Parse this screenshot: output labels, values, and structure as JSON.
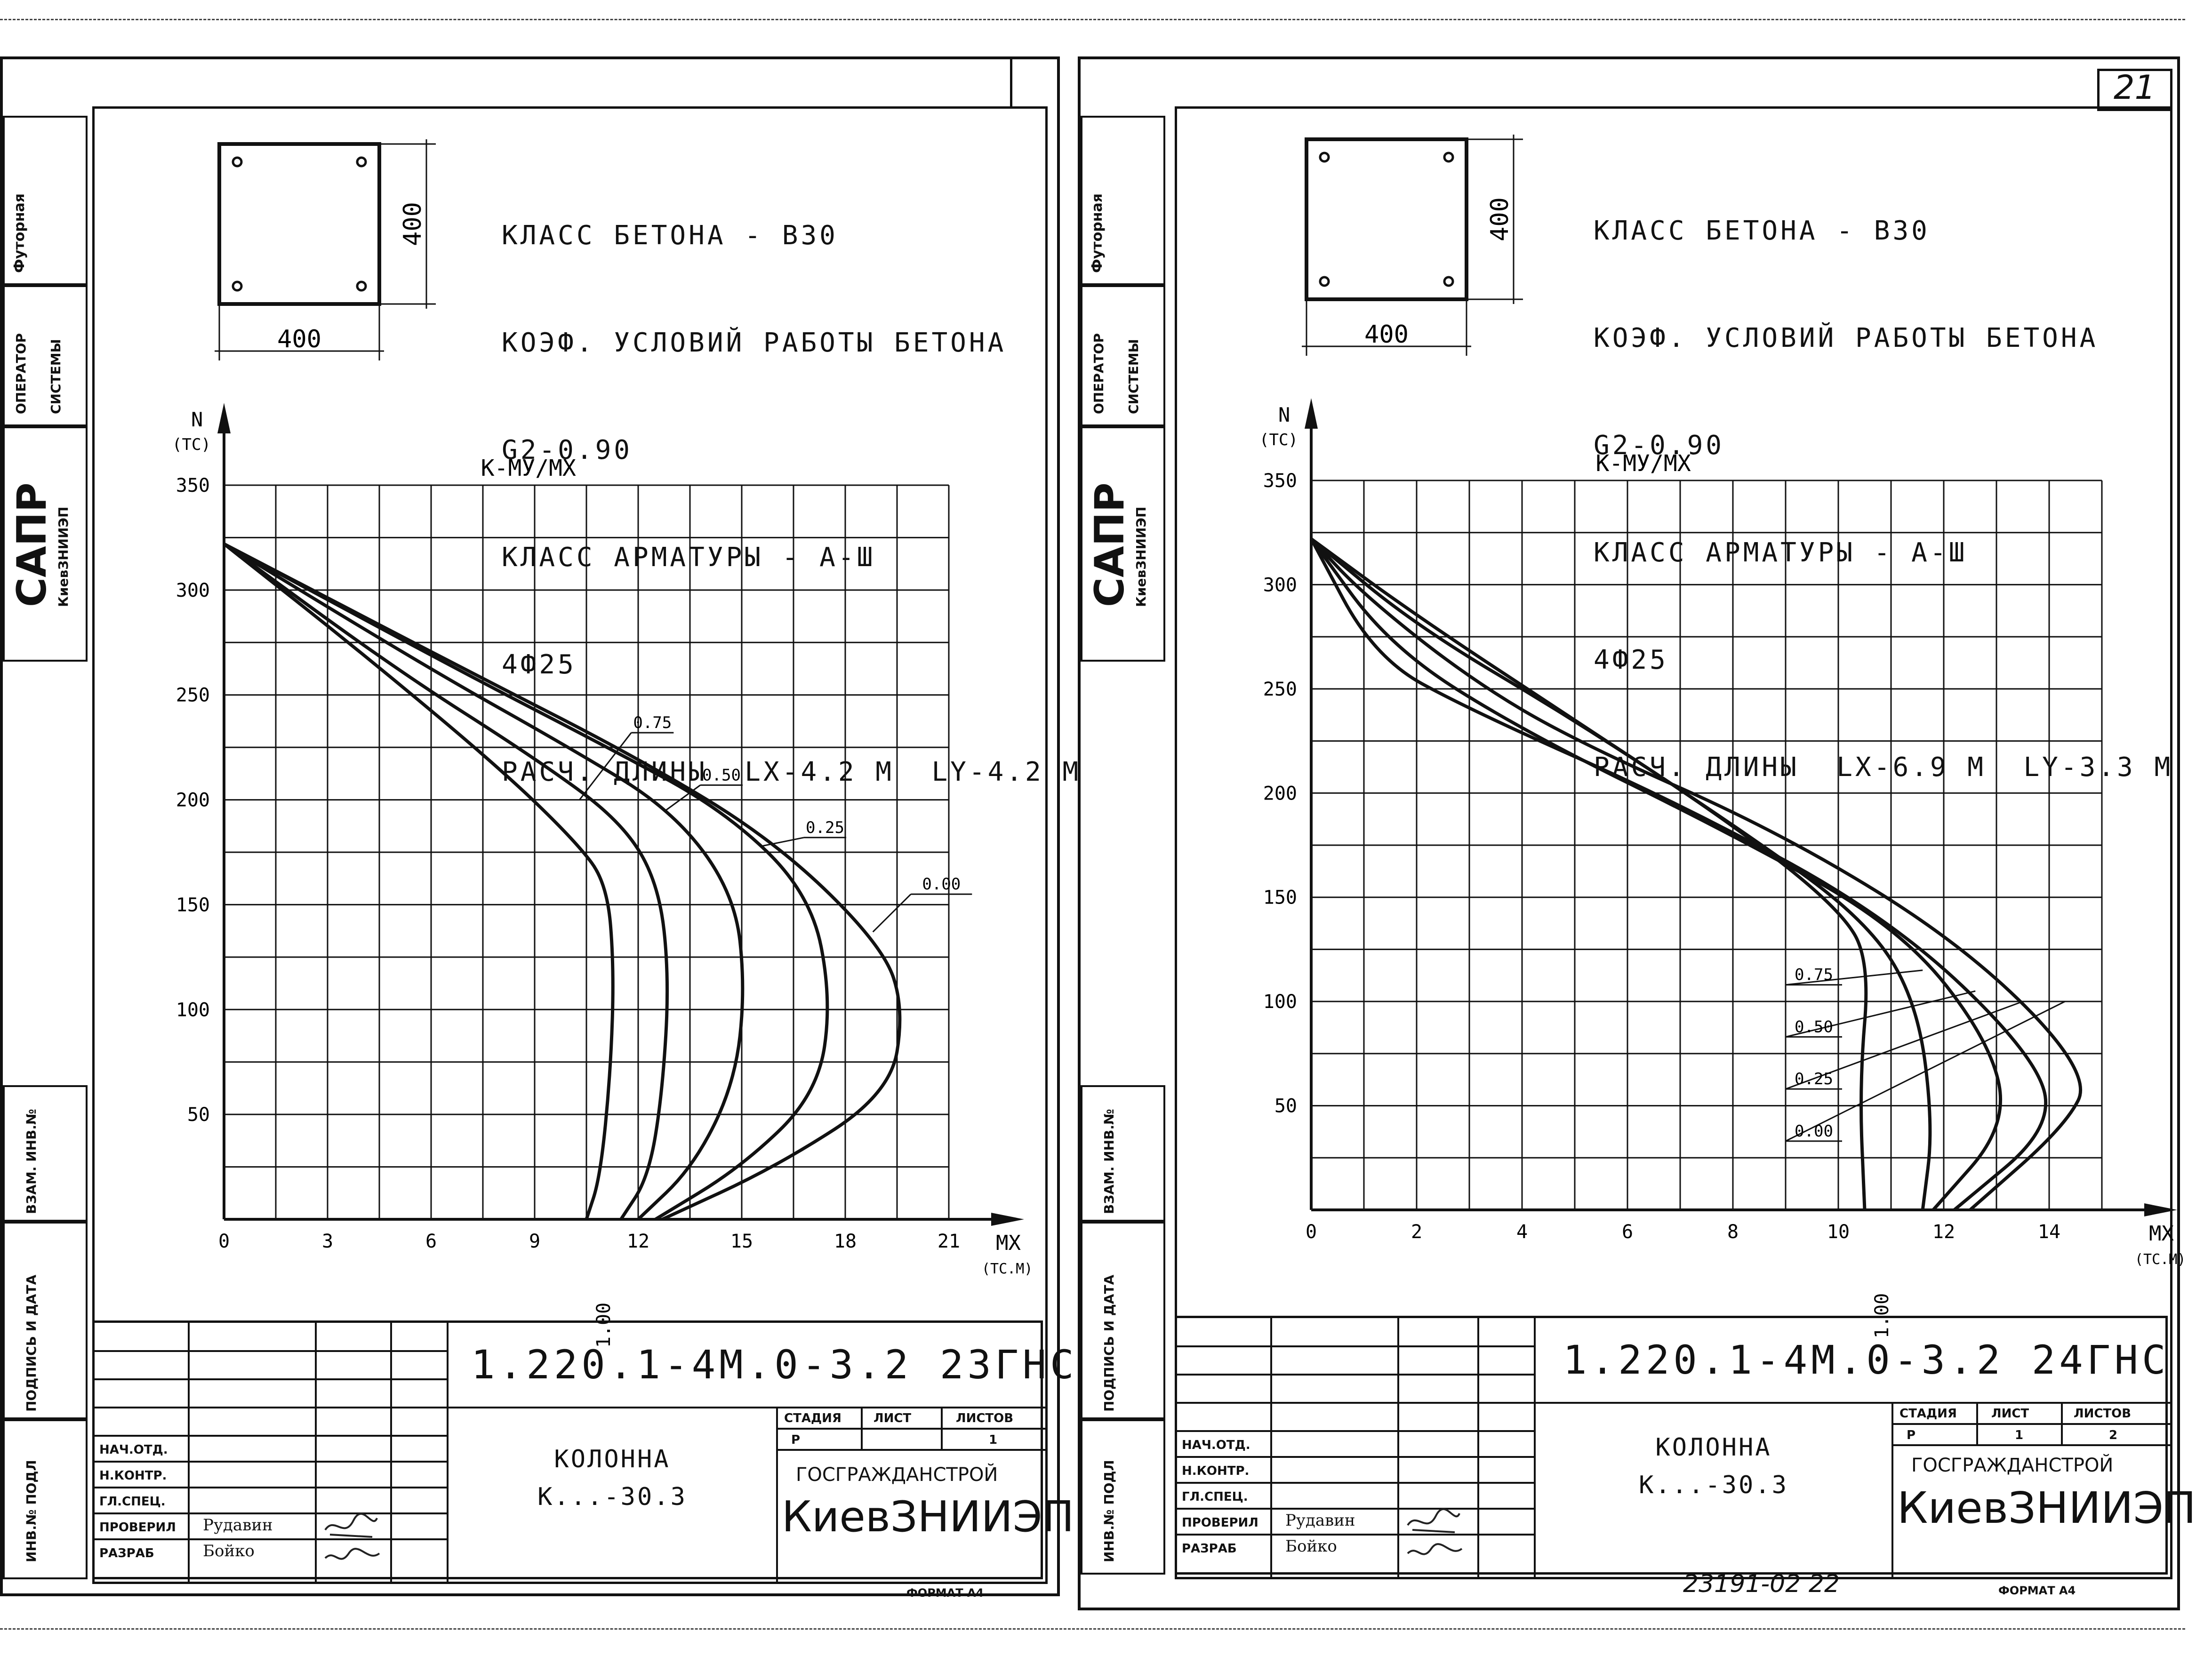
{
  "strip": {
    "futornaya": "Футорная",
    "operator_line1": "ОПЕРАТОР",
    "operator_line2": "СИСТЕМЫ",
    "sapr": "САПР",
    "sapr_org": "КиевЗНИИЭП",
    "vzam": "ВЗАМ. ИНВ.№",
    "podpis": "ПОДПИСЬ И ДАТА",
    "inv": "ИНВ.№ ПОДЛ"
  },
  "page_number": "21",
  "bottom_stamp": "23191-02   22",
  "sheets": [
    {
      "section_width": "400",
      "section_height": "400",
      "spec": [
        "КЛАСС БЕТОНА - В30",
        "КОЭФ. УСЛОВИЙ РАБОТЫ БЕТОНА",
        "G2-0.90",
        "КЛАСС АРМАТУРЫ - А-Ш",
        "4Ф25",
        "РАСЧ. ДЛИНЫ  LX-4.2 М  LY-4.2 М"
      ],
      "title_block": {
        "code": "1.220.1-4М.0-3.2 23ГНС",
        "name_line1": "КОЛОННА",
        "name_line2": "К...-30.3",
        "stage_header": "СТАДИЯ",
        "sheet_header": "ЛИСТ",
        "sheets_header": "ЛИСТОВ",
        "stage": "Р",
        "sheet": "",
        "sheets": "1",
        "org_line1": "ГОСГРАЖДАНСТРОЙ",
        "org_line2": "КиевЗНИИЭП",
        "roles": [
          "НАЧ.ОТД.",
          "Н.КОНТР.",
          "ГЛ.СПЕЦ.",
          "ПРОВЕРИЛ",
          "РАЗРАБ"
        ],
        "names": [
          "",
          "",
          "",
          "Рудавин",
          "Бойко"
        ],
        "format": "ФОРМАТ А4"
      }
    },
    {
      "section_width": "400",
      "section_height": "400",
      "spec": [
        "КЛАСС БЕТОНА - В30",
        "КОЭФ. УСЛОВИЙ РАБОТЫ БЕТОНА",
        "G2-0.90",
        "КЛАСС АРМАТУРЫ - А-Ш",
        "4Ф25",
        "РАСЧ. ДЛИНЫ  LX-6.9 М  LY-3.3 М"
      ],
      "title_block": {
        "code": "1.220.1-4М.0-3.2 24ГНС",
        "name_line1": "КОЛОННА",
        "name_line2": "К...-30.3",
        "stage_header": "СТАДИЯ",
        "sheet_header": "ЛИСТ",
        "sheets_header": "ЛИСТОВ",
        "stage": "Р",
        "sheet": "1",
        "sheets": "2",
        "org_line1": "ГОСГРАЖДАНСТРОЙ",
        "org_line2": "КиевЗНИИЭП",
        "roles": [
          "НАЧ.ОТД.",
          "Н.КОНТР.",
          "ГЛ.СПЕЦ.",
          "ПРОВЕРИЛ",
          "РАЗРАБ"
        ],
        "names": [
          "",
          "",
          "",
          "Рудавин",
          "Бойко"
        ],
        "format": "ФОРМАТ А4"
      }
    }
  ],
  "chart_data": [
    {
      "type": "line",
      "title": "К-МУ/МХ",
      "xlabel": "МХ",
      "xunit": "(ТС.М)",
      "ylabel": "N",
      "yunit": "(ТС)",
      "xlim": [
        0,
        21
      ],
      "ylim": [
        0,
        350
      ],
      "xticks": [
        0,
        3,
        6,
        9,
        12,
        15,
        18,
        21
      ],
      "yticks": [
        50,
        100,
        150,
        200,
        250,
        300,
        350
      ],
      "grid": true,
      "x_grid_step": 1.5,
      "y_grid_step": 25,
      "series": [
        {
          "name": "1.00",
          "x": [
            0,
            4,
            8,
            10.2,
            11.1,
            11.3,
            11.2,
            10.9,
            10.5
          ],
          "y": [
            322,
            270,
            215,
            180,
            160,
            120,
            70,
            20,
            0
          ]
        },
        {
          "name": "0.75",
          "x": [
            0,
            5,
            9,
            11.5,
            12.6,
            12.9,
            12.7,
            12.3,
            11.5
          ],
          "y": [
            322,
            262,
            220,
            190,
            160,
            115,
            60,
            20,
            0
          ]
        },
        {
          "name": "0.50",
          "x": [
            0,
            6,
            10,
            13,
            14.8,
            15.1,
            14.8,
            13.6,
            12
          ],
          "y": [
            322,
            262,
            225,
            195,
            155,
            110,
            65,
            25,
            0
          ]
        },
        {
          "name": "0.25",
          "x": [
            0,
            7,
            11,
            14.5,
            17,
            17.6,
            17.2,
            15,
            12.5
          ],
          "y": [
            322,
            260,
            226,
            195,
            155,
            105,
            60,
            25,
            0
          ]
        },
        {
          "name": "0.00",
          "x": [
            0,
            7,
            12,
            16,
            19.1,
            19.7,
            19.3,
            16,
            12.7
          ],
          "y": [
            322,
            262,
            220,
            180,
            130,
            100,
            60,
            25,
            0
          ]
        }
      ],
      "annotations": [
        "0.75",
        "0.50",
        "0.25",
        "0.00",
        "1.00"
      ]
    },
    {
      "type": "line",
      "title": "К-МУ/МХ",
      "xlabel": "МХ",
      "xunit": "(ТС.М)",
      "ylabel": "N",
      "yunit": "(ТС)",
      "xlim": [
        0,
        15
      ],
      "ylim": [
        0,
        350
      ],
      "xticks": [
        0,
        2,
        4,
        6,
        8,
        10,
        12,
        14
      ],
      "yticks": [
        50,
        100,
        150,
        200,
        250,
        300,
        350
      ],
      "grid": true,
      "x_grid_step": 1,
      "y_grid_step": 25,
      "series": [
        {
          "name": "1.00",
          "x": [
            0,
            2,
            5,
            8,
            10,
            10.6,
            10.4,
            10.5
          ],
          "y": [
            322,
            285,
            235,
            185,
            145,
            120,
            60,
            0
          ]
        },
        {
          "name": "0.75",
          "x": [
            0,
            2,
            5,
            8,
            10.5,
            11.5,
            11.8,
            11.6
          ],
          "y": [
            322,
            280,
            235,
            185,
            140,
            100,
            40,
            0
          ]
        },
        {
          "name": "0.50",
          "x": [
            0,
            1.5,
            4,
            8,
            11.2,
            12.9,
            13.2,
            11.8
          ],
          "y": [
            322,
            270,
            230,
            180,
            135,
            80,
            40,
            0
          ]
        },
        {
          "name": "0.25",
          "x": [
            0,
            1.2,
            3,
            7,
            11,
            13.7,
            14.1,
            12.2
          ],
          "y": [
            322,
            265,
            240,
            195,
            140,
            75,
            40,
            0
          ]
        },
        {
          "name": "0.00",
          "x": [
            0,
            1,
            3,
            5,
            9,
            12.5,
            14.8,
            14.3,
            12.5
          ],
          "y": [
            322,
            295,
            255,
            225,
            180,
            125,
            65,
            40,
            0
          ]
        }
      ],
      "annotations": [
        "0.75",
        "0.50",
        "0.25",
        "0.00",
        "1.00"
      ]
    }
  ]
}
